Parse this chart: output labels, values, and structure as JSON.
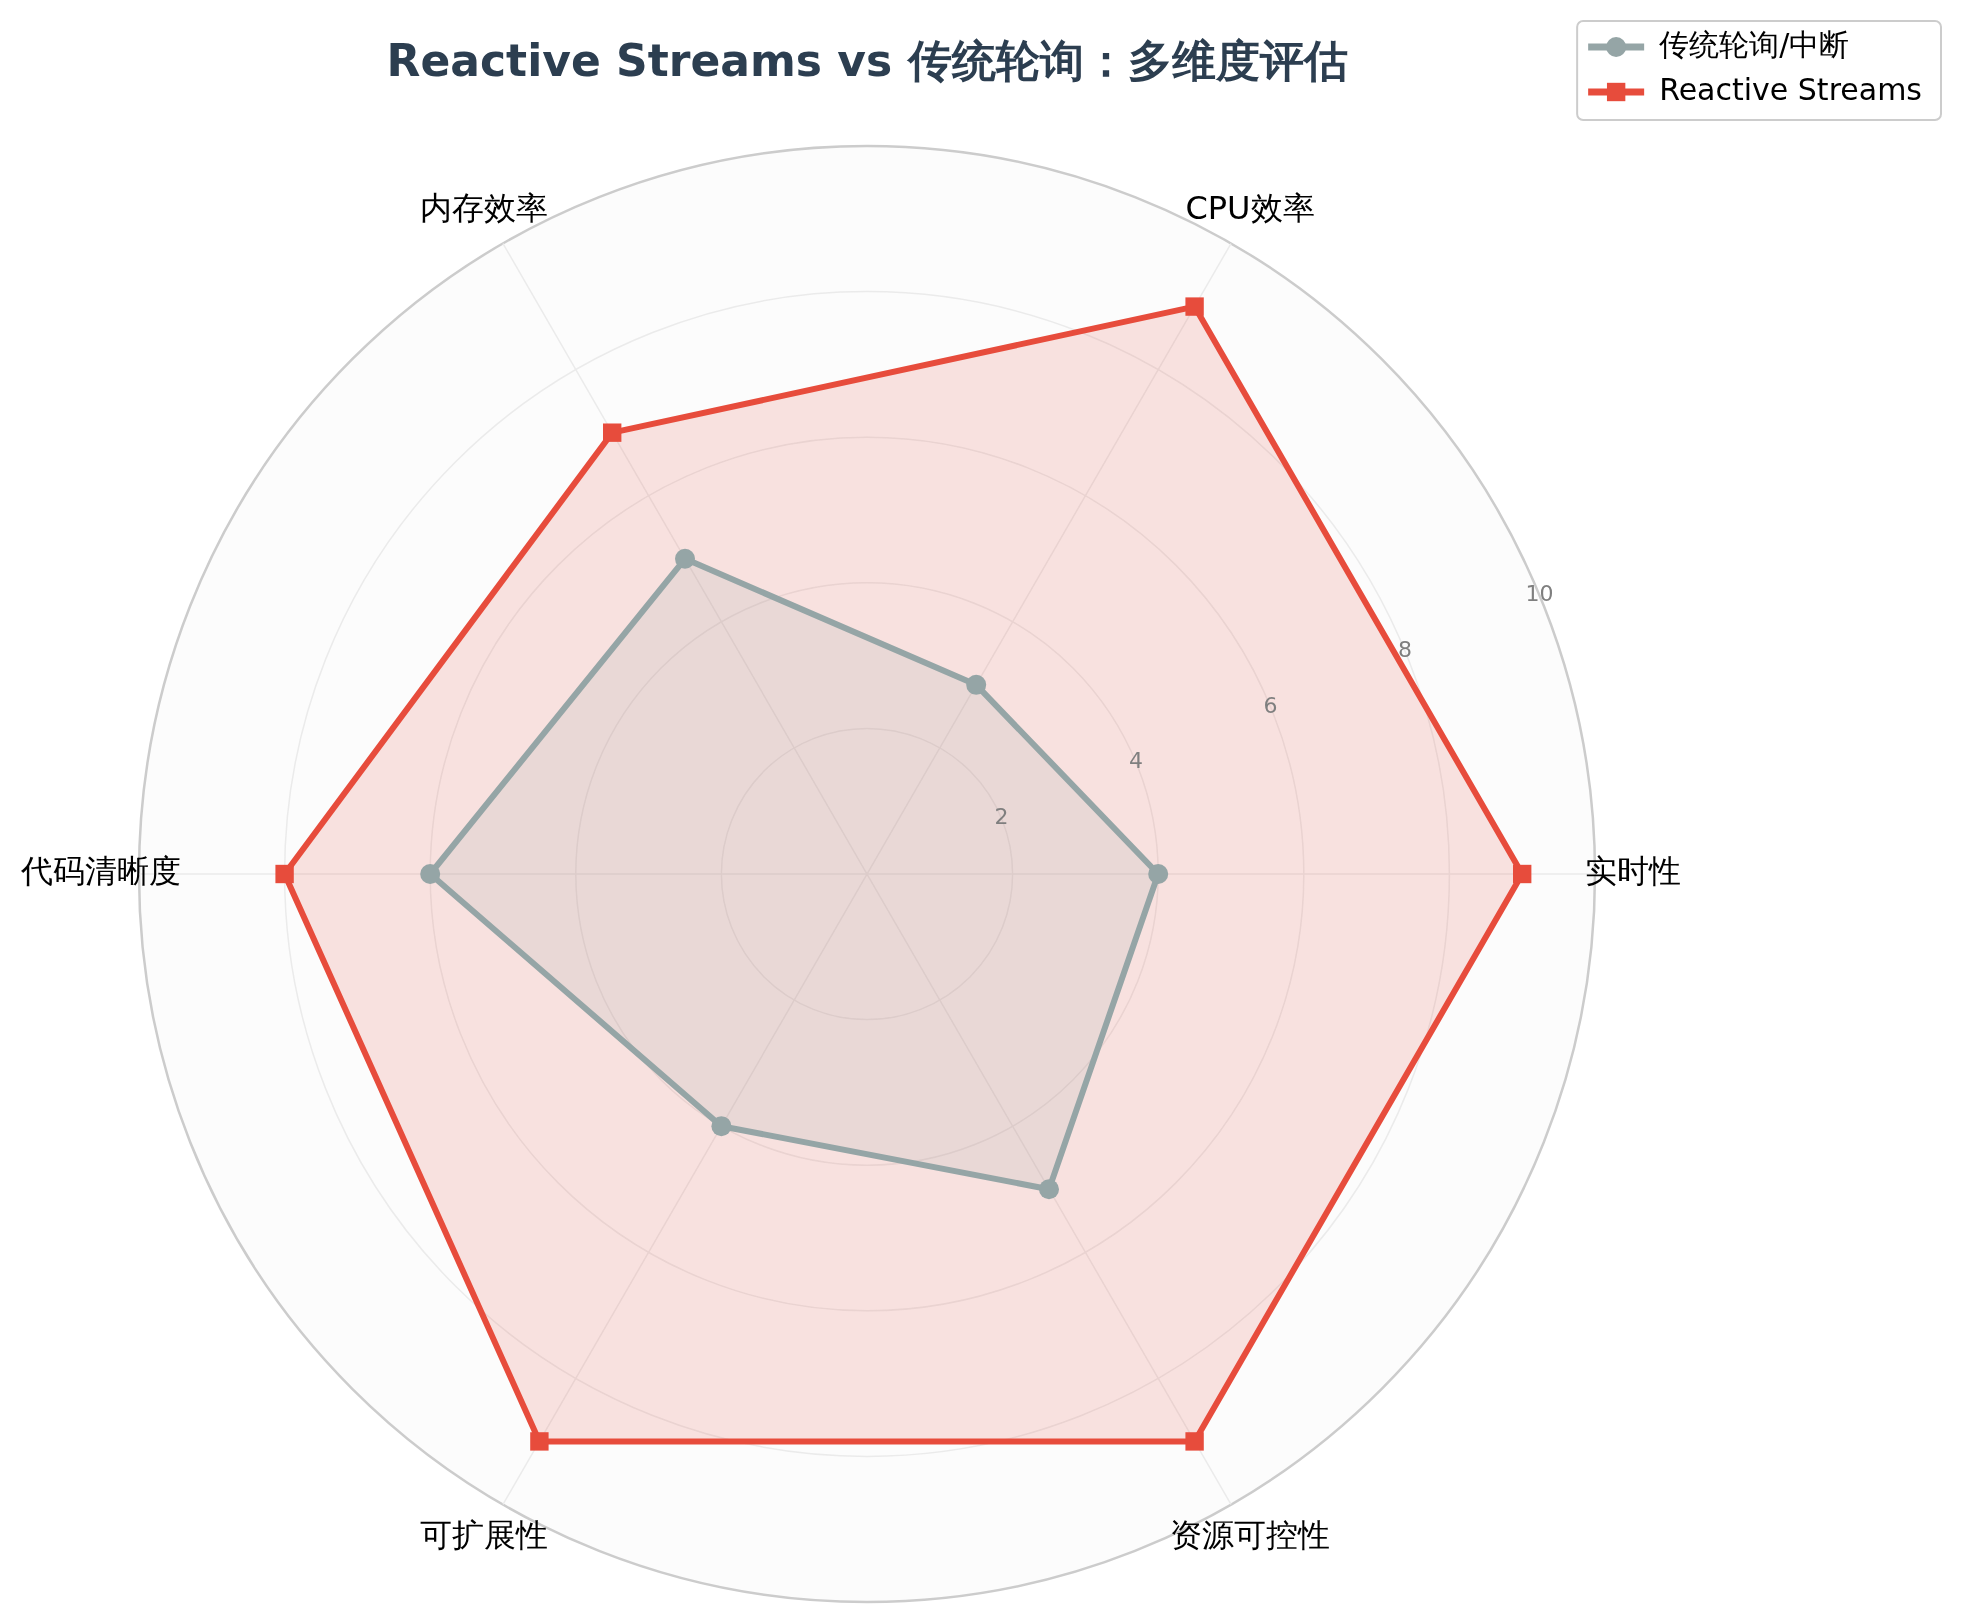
{
  "chart_data": {
    "type": "radar",
    "title": "Reactive Streams vs 传统轮询：多维度评估",
    "categories": [
      "CPU效率",
      "实时性",
      "资源可控性",
      "可扩展性",
      "代码清晰度",
      "内存效率"
    ],
    "series": [
      {
        "name": "传统轮询/中断",
        "color": "#95a5a6",
        "marker": "circle",
        "values": [
          3,
          4,
          5,
          4,
          6,
          5
        ]
      },
      {
        "name": "Reactive Streams",
        "color": "#e74c3c",
        "marker": "square",
        "values": [
          9,
          9,
          9,
          9,
          8,
          7
        ]
      }
    ],
    "ylim": [
      0,
      10
    ],
    "yticks": [
      2,
      4,
      6,
      8,
      10
    ],
    "grid": true,
    "legend": "top right"
  }
}
